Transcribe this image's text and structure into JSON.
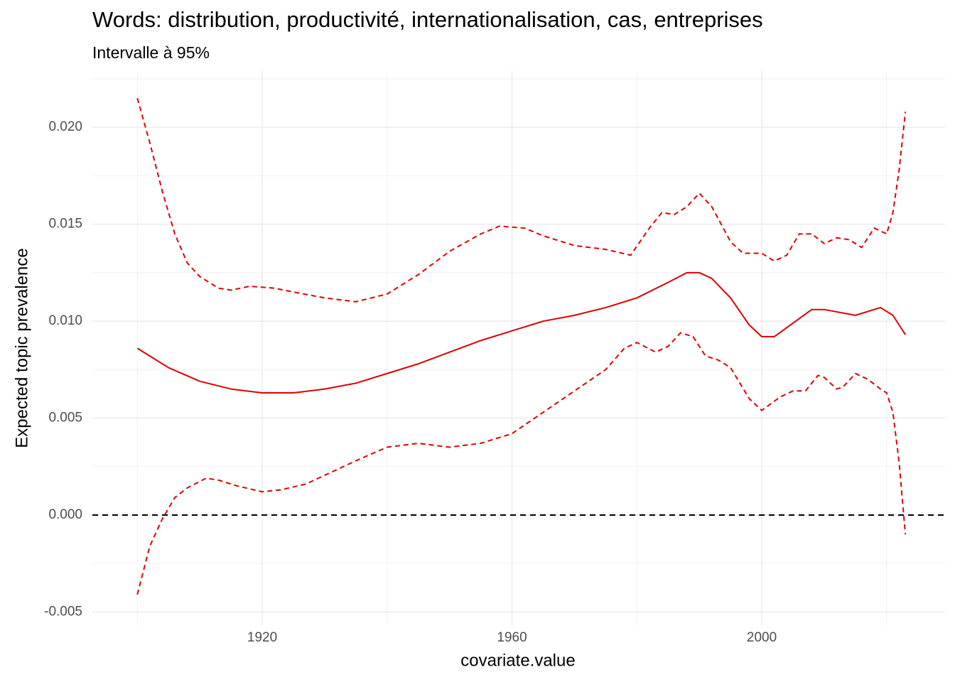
{
  "chart_data": {
    "type": "line",
    "title": "Words: distribution, productivité, internationalisation, cas, entreprises",
    "subtitle": "Intervalle à 95%",
    "x_label": "covariate.value",
    "y_label": "Expected topic prevalence",
    "xlim": [
      1892.8,
      2029.35
    ],
    "ylim": [
      -0.00568,
      0.0229
    ],
    "xticks": [
      1920,
      1960,
      2000
    ],
    "xminor_ticks": [
      1900,
      1940,
      1980,
      2020
    ],
    "yticks": [
      {
        "value": -0.005,
        "label": "-0.005"
      },
      {
        "value": 0,
        "label": "0.000"
      },
      {
        "value": 0.005,
        "label": "0.005"
      },
      {
        "value": 0.01,
        "label": "0.010"
      },
      {
        "value": 0.015,
        "label": "0.015"
      },
      {
        "value": 0.02,
        "label": "0.020"
      }
    ],
    "yminor_ticks": [
      -0.0025,
      0.0025,
      0.0075,
      0.0125,
      0.0175,
      0.0225
    ],
    "grid": true,
    "reference_line": {
      "value": 0,
      "color": "#000000",
      "dashed": true
    },
    "series": [
      {
        "color": "#e00000",
        "dashed": false,
        "x": [
          1900,
          1905,
          1910,
          1915,
          1920,
          1925,
          1930,
          1935,
          1940,
          1945,
          1950,
          1955,
          1960,
          1965,
          1970,
          1975,
          1980,
          1985,
          1988,
          1990,
          1992,
          1995,
          1998,
          2000,
          2002,
          2005,
          2008,
          2010,
          2015,
          2019,
          2021,
          2023
        ],
        "values": [
          0.0086,
          0.0076,
          0.0069,
          0.0065,
          0.0063,
          0.0063,
          0.0065,
          0.0068,
          0.0073,
          0.0078,
          0.0084,
          0.009,
          0.0095,
          0.01,
          0.0103,
          0.0107,
          0.0112,
          0.012,
          0.0125,
          0.0125,
          0.0122,
          0.0112,
          0.0098,
          0.0092,
          0.0092,
          0.0099,
          0.0106,
          0.0106,
          0.0103,
          0.0107,
          0.0103,
          0.0093
        ]
      },
      {
        "color": "#e00000",
        "dashed": true,
        "x": [
          1900,
          1902,
          1904,
          1906,
          1908,
          1910,
          1913,
          1915,
          1918,
          1922,
          1925,
          1930,
          1935,
          1940,
          1945,
          1950,
          1955,
          1958,
          1962,
          1965,
          1970,
          1975,
          1979,
          1982,
          1984,
          1986,
          1988,
          1990,
          1992,
          1995,
          1997,
          2000,
          2002,
          2004,
          2006,
          2008,
          2010,
          2012,
          2014,
          2016,
          2018,
          2020,
          2021,
          2022,
          2023
        ],
        "values": [
          0.0215,
          0.0192,
          0.0167,
          0.0145,
          0.013,
          0.0123,
          0.0117,
          0.0116,
          0.0118,
          0.0117,
          0.0115,
          0.0112,
          0.011,
          0.0114,
          0.0124,
          0.0136,
          0.0145,
          0.0149,
          0.0148,
          0.0144,
          0.0139,
          0.0137,
          0.0134,
          0.0148,
          0.0156,
          0.0155,
          0.0159,
          0.0166,
          0.0159,
          0.0141,
          0.0135,
          0.0135,
          0.0131,
          0.0134,
          0.0145,
          0.0145,
          0.014,
          0.0143,
          0.0142,
          0.0138,
          0.0148,
          0.0145,
          0.0156,
          0.0178,
          0.0208
        ]
      },
      {
        "color": "#e00000",
        "dashed": true,
        "x": [
          1900,
          1902,
          1904,
          1906,
          1908,
          1911,
          1913,
          1916,
          1920,
          1923,
          1927,
          1931,
          1935,
          1940,
          1945,
          1950,
          1955,
          1960,
          1965,
          1970,
          1975,
          1978,
          1980,
          1983,
          1985,
          1987,
          1989,
          1991,
          1993,
          1995,
          1998,
          2000,
          2003,
          2005,
          2007,
          2009,
          2010,
          2012,
          2013,
          2015,
          2017,
          2019,
          2020,
          2021,
          2022,
          2023
        ],
        "values": [
          -0.0041,
          -0.0016,
          -0.0002,
          0.0009,
          0.0014,
          0.0019,
          0.0018,
          0.0015,
          0.0012,
          0.0013,
          0.0016,
          0.0022,
          0.0028,
          0.0035,
          0.0037,
          0.0035,
          0.0037,
          0.0042,
          0.0053,
          0.0064,
          0.0075,
          0.0086,
          0.0089,
          0.0084,
          0.0087,
          0.0094,
          0.0092,
          0.0082,
          0.008,
          0.0076,
          0.006,
          0.0054,
          0.0061,
          0.0064,
          0.0064,
          0.0072,
          0.0071,
          0.0065,
          0.0066,
          0.0073,
          0.007,
          0.0065,
          0.0063,
          0.0053,
          0.0027,
          -0.001
        ]
      }
    ]
  }
}
